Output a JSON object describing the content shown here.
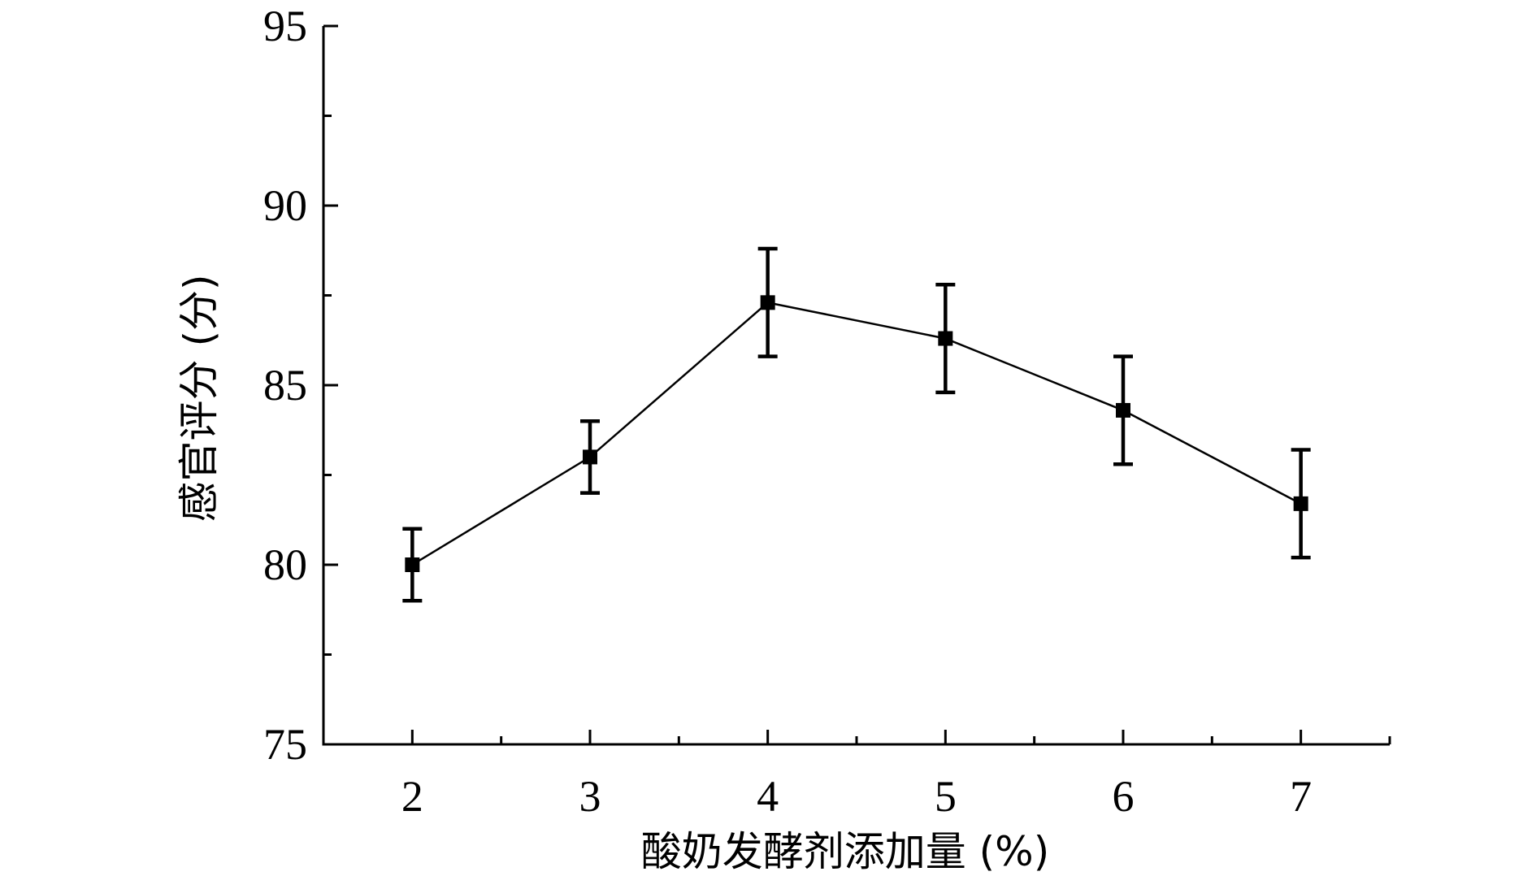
{
  "chart_data": {
    "type": "line",
    "title": "",
    "xlabel": "酸奶发酵剂添加量 (%)",
    "ylabel": "感官评分 (分)",
    "x": [
      2,
      3,
      4,
      5,
      6,
      7
    ],
    "xticks": [
      "2",
      "3",
      "4",
      "5",
      "6",
      "7"
    ],
    "xlim": [
      1.5,
      7.5
    ],
    "ylim": [
      75,
      95
    ],
    "yticks": [
      "75",
      "80",
      "85",
      "90",
      "95"
    ],
    "series": [
      {
        "values": [
          80.0,
          83.0,
          87.3,
          86.3,
          84.3,
          81.7
        ],
        "errors": [
          1.0,
          1.0,
          1.5,
          1.5,
          1.5,
          1.5
        ],
        "marker": "square",
        "color": "#000000"
      }
    ],
    "grid": false,
    "legend": "none"
  }
}
